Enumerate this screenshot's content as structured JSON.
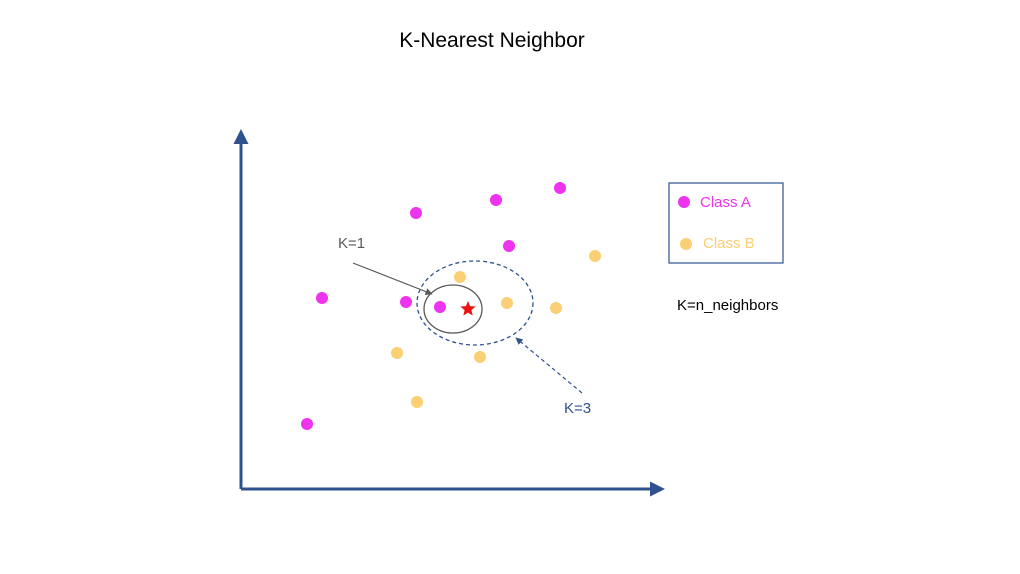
{
  "title": "K-Nearest Neighbor",
  "legend": {
    "items": [
      {
        "label": "Class A",
        "color": "#ee33ee"
      },
      {
        "label": "Class B",
        "color": "#fbcf73"
      }
    ]
  },
  "note": "K=n_neighbors",
  "annotations": {
    "k1": {
      "label": "K=1",
      "color": "#595959"
    },
    "k3": {
      "label": "K=3",
      "color": "#2f528f"
    }
  },
  "colors": {
    "axis": "#2f528f",
    "query_star": "#ee1111",
    "k1_circle": "#595959",
    "k3_circle": "#2f528f"
  },
  "icons": {
    "query": "red-star-icon"
  }
}
